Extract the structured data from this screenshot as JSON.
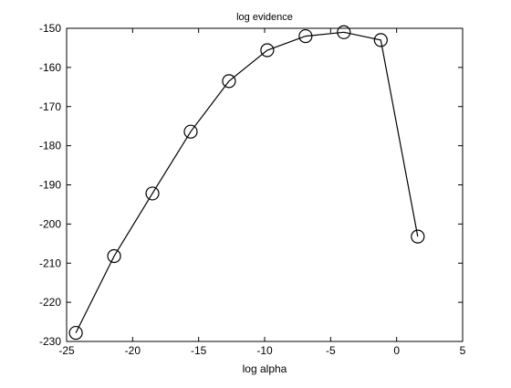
{
  "chart_data": {
    "type": "line",
    "title": "log evidence",
    "xlabel": "log alpha",
    "ylabel": "",
    "xlim": [
      -25,
      5
    ],
    "ylim": [
      -230,
      -150
    ],
    "xticks": [
      -25,
      -20,
      -15,
      -10,
      -5,
      0,
      5
    ],
    "yticks": [
      -230,
      -220,
      -210,
      -200,
      -190,
      -180,
      -170,
      -160,
      -150
    ],
    "grid": false,
    "marker": "circle",
    "series": [
      {
        "x": [
          -24.3,
          -21.4,
          -18.5,
          -15.6,
          -12.7,
          -9.8,
          -6.9,
          -4.0,
          -1.2,
          1.6
        ],
        "y": [
          -227.8,
          -208.2,
          -192.2,
          -176.4,
          -163.5,
          -155.6,
          -152.0,
          -151.0,
          -153.0,
          -203.2
        ]
      }
    ],
    "colors": {
      "line": "#000000",
      "axes": "#000000",
      "background": "#ffffff"
    }
  }
}
